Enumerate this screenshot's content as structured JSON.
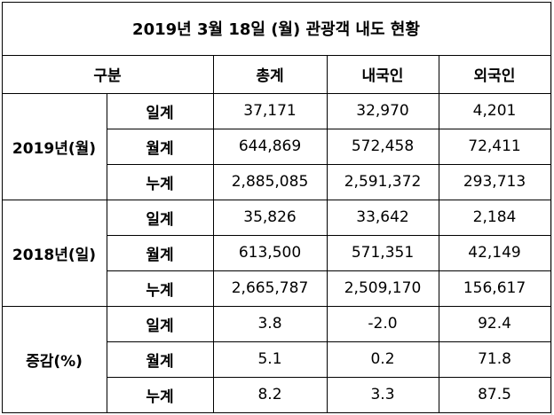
{
  "title": "2019년 3월 18일 (월) 관광객 내도 현황",
  "header": [
    "구분",
    "총계",
    "내국인",
    "외국인"
  ],
  "groups": [
    {
      "label": "2019년(월)",
      "rows": [
        {
          "label": "일계",
          "cells": [
            "37,171",
            "32,970",
            "4,201"
          ]
        },
        {
          "label": "월계",
          "cells": [
            "644,869",
            "572,458",
            "72,411"
          ]
        },
        {
          "label": "누계",
          "cells": [
            "2,885,085",
            "2,591,372",
            "293,713"
          ]
        }
      ]
    },
    {
      "label": "2018년(일)",
      "rows": [
        {
          "label": "일계",
          "cells": [
            "35,826",
            "33,642",
            "2,184"
          ]
        },
        {
          "label": "월계",
          "cells": [
            "613,500",
            "571,351",
            "42,149"
          ]
        },
        {
          "label": "누계",
          "cells": [
            "2,665,787",
            "2,509,170",
            "156,617"
          ]
        }
      ]
    },
    {
      "label": "증감(%)",
      "rows": [
        {
          "label": "일계",
          "cells": [
            "3.8",
            "-2.0",
            "92.4"
          ]
        },
        {
          "label": "월계",
          "cells": [
            "5.1",
            "0.2",
            "71.8"
          ]
        },
        {
          "label": "누계",
          "cells": [
            "8.2",
            "3.3",
            "87.5"
          ]
        }
      ]
    }
  ]
}
